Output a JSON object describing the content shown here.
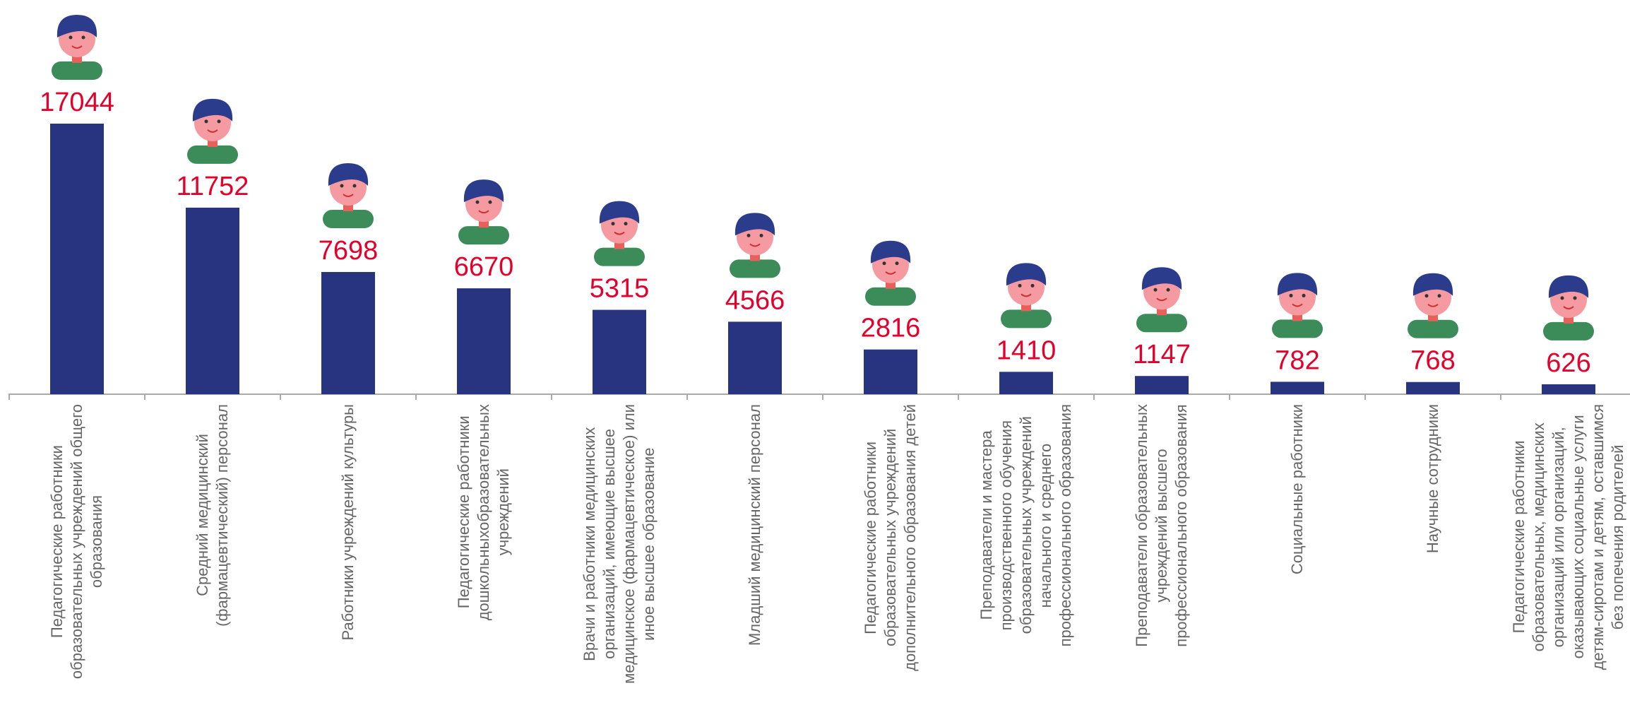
{
  "chart_data": {
    "type": "bar",
    "color": "#283480",
    "value_color": "#e4002b",
    "categories": [
      "Педагогические работники\nобразовательных учреждений общего\nобразования",
      "Средний медицинский\n(фармацевтический) персонал",
      "Работники учреждений культуры",
      "Педагогические работники\nдошкольныхобразовательных\nучреждений",
      "Врачи и работники медицинских\nорганизаций, имеющие высшее\nмедицинское (фармацевтическое) или\nиное высшее образование",
      "Младший медицинский персонал",
      "Педагогические работники\nобразовательных учреждений\nдополнительного образования детей",
      "Преподаватели и мастера\nпроизводственного обучения\nобразовательных учреждений\nначального и среднего\nпрофессионального образования",
      "Преподаватели образовательных\nучреждений высшего\nпрофессионального образования",
      "Социальные работники",
      "Научные сотрудники",
      "Педагогические работники\nобразовательных, медицинских\nорганизаций или организаций,\nоказывающих социальные услуги\nдетям-сиротам и детям, оставшимся\nбез попечения родителей"
    ],
    "values": [
      17044,
      11752,
      7698,
      6670,
      5315,
      4566,
      2816,
      1410,
      1147,
      782,
      768,
      626
    ]
  }
}
